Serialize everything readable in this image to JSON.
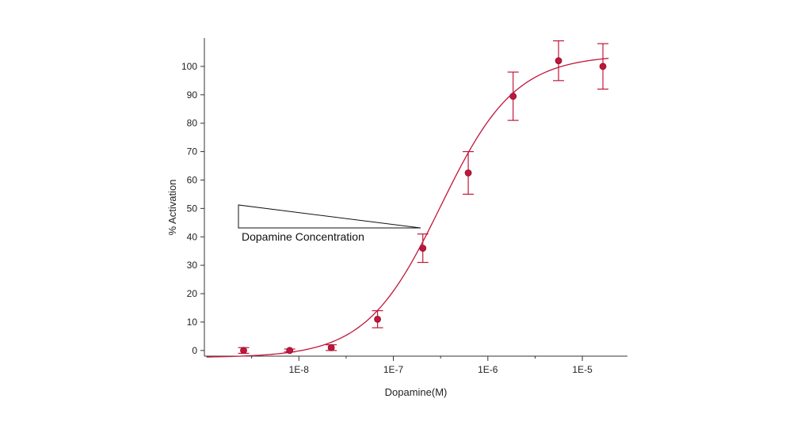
{
  "chart_data": {
    "type": "scatter",
    "title": "",
    "xlabel": "Dopamine(M)",
    "ylabel": "% Activation",
    "x_scale": "log",
    "xlim": [
      1e-09,
      3e-05
    ],
    "ylim": [
      -2,
      110
    ],
    "x_ticks": [
      {
        "value": 1e-08,
        "label": "1E-8"
      },
      {
        "value": 1e-07,
        "label": "1E-7"
      },
      {
        "value": 1e-06,
        "label": "1E-6"
      },
      {
        "value": 1e-05,
        "label": "1E-5"
      }
    ],
    "y_ticks": [
      0,
      10,
      20,
      30,
      40,
      50,
      60,
      70,
      80,
      90,
      100
    ],
    "grid": false,
    "legend": "none",
    "colors": {
      "series": "#c0173b",
      "axis": "#333333",
      "annotation": "#111111"
    },
    "series": [
      {
        "points": [
          {
            "x": 2.6e-09,
            "y": 0,
            "err": 1
          },
          {
            "x": 8e-09,
            "y": 0,
            "err": 0.5
          },
          {
            "x": 2.2e-08,
            "y": 1,
            "err": 1
          },
          {
            "x": 6.8e-08,
            "y": 11,
            "err": 3
          },
          {
            "x": 2.05e-07,
            "y": 36,
            "err": 5
          },
          {
            "x": 6.2e-07,
            "y": 62.5,
            "err": 7.5
          },
          {
            "x": 1.85e-06,
            "y": 89.5,
            "err": 8.5
          },
          {
            "x": 5.6e-06,
            "y": 102,
            "err": 7
          },
          {
            "x": 1.65e-05,
            "y": 100,
            "err": 8
          }
        ],
        "fit": {
          "type": "sigmoid",
          "bottom": -2.5,
          "top": 104,
          "log_ec50": -6.5,
          "hill": 1.1
        }
      }
    ],
    "annotations": [
      {
        "text": "Dopamine Concentration",
        "shape": "wedge"
      }
    ]
  }
}
